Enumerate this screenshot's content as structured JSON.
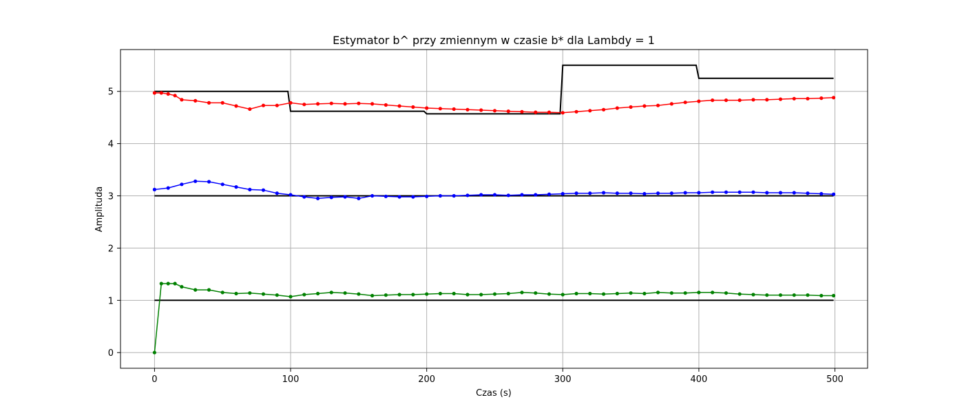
{
  "chart_data": {
    "type": "line",
    "title": "Estymator b^  przy zmiennym w czasie b* dla Lambdy = 1",
    "xlabel": "Czas (s)",
    "ylabel": "Amplituda",
    "xlim": [
      -25,
      524
    ],
    "ylim": [
      -0.3,
      5.8
    ],
    "xticks": [
      0,
      100,
      200,
      300,
      400,
      500
    ],
    "yticks": [
      0,
      1,
      2,
      3,
      4,
      5
    ],
    "grid": true,
    "true_parameters": [
      {
        "color": "#000000",
        "x": [
          0,
          98,
          100,
          198,
          200,
          298,
          300,
          398,
          400,
          499
        ],
        "y": [
          5.0,
          5.0,
          4.62,
          4.62,
          4.57,
          4.57,
          5.5,
          5.5,
          5.25,
          5.25
        ]
      },
      {
        "color": "#000000",
        "x": [
          0,
          499
        ],
        "y": [
          3.0,
          3.0
        ]
      },
      {
        "color": "#000000",
        "x": [
          0,
          499
        ],
        "y": [
          1.0,
          1.0
        ]
      }
    ],
    "series": [
      {
        "color": "#ff0000",
        "x": [
          0,
          5,
          10,
          15,
          20,
          30,
          40,
          50,
          60,
          70,
          80,
          90,
          100,
          110,
          120,
          130,
          140,
          150,
          160,
          170,
          180,
          190,
          200,
          210,
          220,
          230,
          240,
          250,
          260,
          270,
          280,
          290,
          300,
          310,
          320,
          330,
          340,
          350,
          360,
          370,
          380,
          390,
          400,
          410,
          420,
          430,
          440,
          450,
          460,
          470,
          480,
          490,
          499
        ],
        "y": [
          4.97,
          4.97,
          4.95,
          4.92,
          4.84,
          4.82,
          4.78,
          4.78,
          4.72,
          4.66,
          4.73,
          4.73,
          4.78,
          4.75,
          4.76,
          4.77,
          4.76,
          4.77,
          4.76,
          4.74,
          4.72,
          4.7,
          4.68,
          4.67,
          4.66,
          4.65,
          4.64,
          4.63,
          4.62,
          4.61,
          4.6,
          4.6,
          4.59,
          4.61,
          4.63,
          4.65,
          4.68,
          4.7,
          4.72,
          4.73,
          4.76,
          4.79,
          4.81,
          4.83,
          4.83,
          4.83,
          4.84,
          4.84,
          4.85,
          4.86,
          4.86,
          4.87,
          4.88
        ]
      },
      {
        "color": "#0000ff",
        "x": [
          0,
          10,
          20,
          30,
          40,
          50,
          60,
          70,
          80,
          90,
          100,
          110,
          120,
          130,
          140,
          150,
          160,
          170,
          180,
          190,
          200,
          210,
          220,
          230,
          240,
          250,
          260,
          270,
          280,
          290,
          300,
          310,
          320,
          330,
          340,
          350,
          360,
          370,
          380,
          390,
          400,
          410,
          420,
          430,
          440,
          450,
          460,
          470,
          480,
          490,
          499
        ],
        "y": [
          3.12,
          3.15,
          3.22,
          3.28,
          3.27,
          3.22,
          3.17,
          3.12,
          3.11,
          3.05,
          3.02,
          2.98,
          2.95,
          2.97,
          2.98,
          2.95,
          3.0,
          2.99,
          2.98,
          2.98,
          2.99,
          3.0,
          3.0,
          3.01,
          3.02,
          3.02,
          3.01,
          3.02,
          3.02,
          3.03,
          3.04,
          3.05,
          3.05,
          3.06,
          3.05,
          3.05,
          3.04,
          3.05,
          3.05,
          3.06,
          3.06,
          3.07,
          3.07,
          3.07,
          3.07,
          3.06,
          3.06,
          3.06,
          3.05,
          3.04,
          3.03
        ]
      },
      {
        "color": "#008000",
        "x": [
          0,
          5,
          10,
          15,
          20,
          30,
          40,
          50,
          60,
          70,
          80,
          90,
          100,
          110,
          120,
          130,
          140,
          150,
          160,
          170,
          180,
          190,
          200,
          210,
          220,
          230,
          240,
          250,
          260,
          270,
          280,
          290,
          300,
          310,
          320,
          330,
          340,
          350,
          360,
          370,
          380,
          390,
          400,
          410,
          420,
          430,
          440,
          450,
          460,
          470,
          480,
          490,
          499
        ],
        "y": [
          0.0,
          1.32,
          1.32,
          1.32,
          1.26,
          1.2,
          1.2,
          1.15,
          1.13,
          1.14,
          1.12,
          1.1,
          1.07,
          1.11,
          1.13,
          1.15,
          1.14,
          1.12,
          1.09,
          1.1,
          1.11,
          1.11,
          1.12,
          1.13,
          1.13,
          1.11,
          1.11,
          1.12,
          1.13,
          1.15,
          1.14,
          1.12,
          1.11,
          1.13,
          1.13,
          1.12,
          1.13,
          1.14,
          1.13,
          1.15,
          1.14,
          1.14,
          1.15,
          1.15,
          1.14,
          1.12,
          1.11,
          1.1,
          1.1,
          1.1,
          1.1,
          1.09,
          1.09
        ]
      }
    ]
  }
}
